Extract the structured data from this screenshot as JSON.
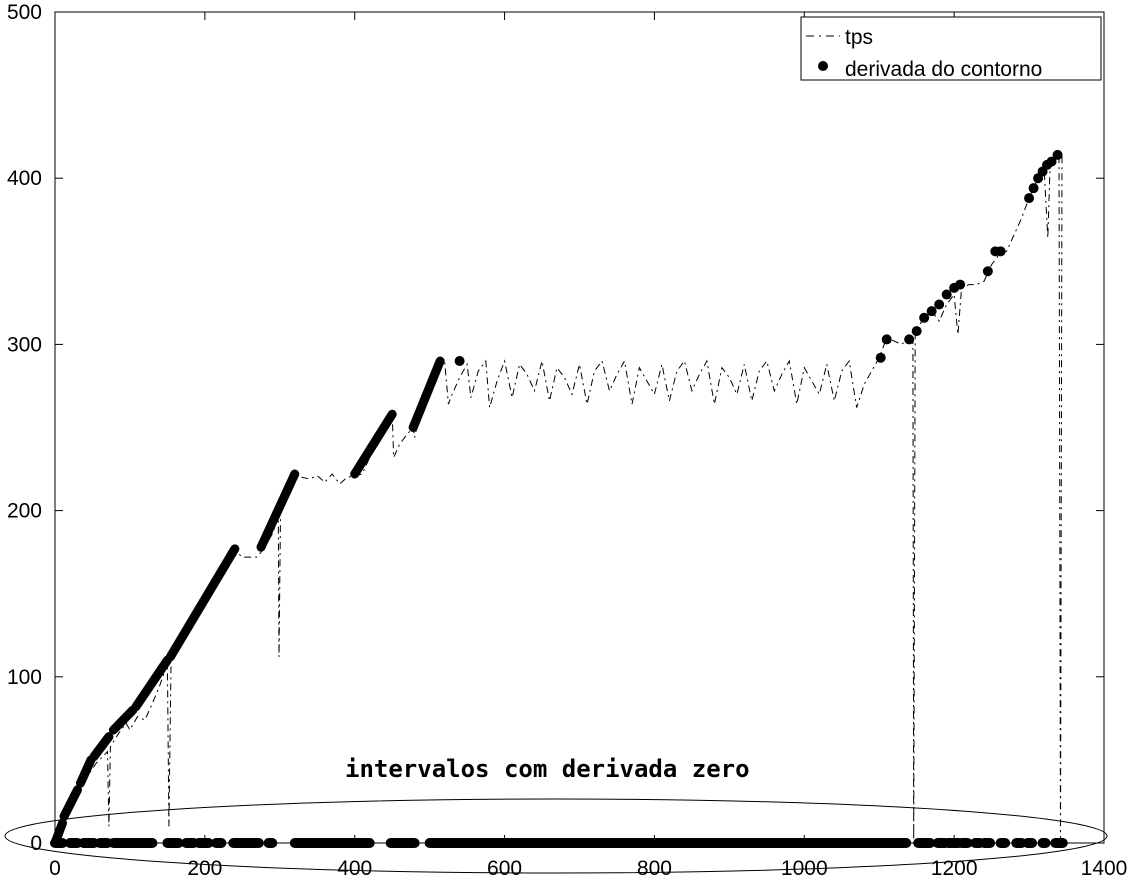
{
  "chart_data": {
    "type": "line",
    "title": "",
    "xlabel": "",
    "ylabel": "",
    "xlim": [
      0,
      1400
    ],
    "ylim": [
      0,
      500
    ],
    "x_ticks": [
      0,
      200,
      400,
      600,
      800,
      1000,
      1200,
      1400
    ],
    "y_ticks": [
      0,
      100,
      200,
      300,
      400,
      500
    ],
    "grid": false,
    "legend_position": "top-right",
    "annotation": "intervalos com derivada zero",
    "series": [
      {
        "name": "tps",
        "style": "dashed",
        "color": "#000000",
        "points": [
          [
            0,
            0
          ],
          [
            10,
            12
          ],
          [
            20,
            22
          ],
          [
            30,
            30
          ],
          [
            40,
            38
          ],
          [
            55,
            48
          ],
          [
            70,
            55
          ],
          [
            72,
            10
          ],
          [
            74,
            58
          ],
          [
            85,
            66
          ],
          [
            95,
            72
          ],
          [
            100,
            68
          ],
          [
            110,
            76
          ],
          [
            120,
            74
          ],
          [
            130,
            84
          ],
          [
            140,
            95
          ],
          [
            150,
            108
          ],
          [
            152,
            10
          ],
          [
            155,
            112
          ],
          [
            160,
            118
          ],
          [
            170,
            126
          ],
          [
            180,
            132
          ],
          [
            190,
            138
          ],
          [
            200,
            144
          ],
          [
            210,
            150
          ],
          [
            220,
            158
          ],
          [
            230,
            166
          ],
          [
            240,
            176
          ],
          [
            250,
            172
          ],
          [
            260,
            172
          ],
          [
            270,
            172
          ],
          [
            280,
            178
          ],
          [
            290,
            186
          ],
          [
            298,
            196
          ],
          [
            299,
            112
          ],
          [
            301,
            198
          ],
          [
            310,
            210
          ],
          [
            320,
            222
          ],
          [
            330,
            220
          ],
          [
            340,
            219
          ],
          [
            350,
            221
          ],
          [
            360,
            217
          ],
          [
            370,
            222
          ],
          [
            380,
            216
          ],
          [
            390,
            220
          ],
          [
            400,
            221
          ],
          [
            410,
            222
          ],
          [
            420,
            232
          ],
          [
            430,
            244
          ],
          [
            440,
            250
          ],
          [
            450,
            258
          ],
          [
            452,
            232
          ],
          [
            460,
            240
          ],
          [
            470,
            246
          ],
          [
            478,
            250
          ],
          [
            480,
            244
          ],
          [
            490,
            265
          ],
          [
            500,
            276
          ],
          [
            510,
            284
          ],
          [
            520,
            290
          ],
          [
            525,
            264
          ],
          [
            530,
            270
          ],
          [
            540,
            280
          ],
          [
            550,
            288
          ],
          [
            555,
            268
          ],
          [
            565,
            284
          ],
          [
            575,
            290
          ],
          [
            580,
            262
          ],
          [
            590,
            278
          ],
          [
            600,
            290
          ],
          [
            610,
            268
          ],
          [
            620,
            288
          ],
          [
            630,
            282
          ],
          [
            640,
            272
          ],
          [
            650,
            290
          ],
          [
            660,
            266
          ],
          [
            670,
            286
          ],
          [
            680,
            280
          ],
          [
            690,
            270
          ],
          [
            700,
            288
          ],
          [
            710,
            264
          ],
          [
            720,
            284
          ],
          [
            730,
            290
          ],
          [
            740,
            272
          ],
          [
            750,
            282
          ],
          [
            760,
            290
          ],
          [
            770,
            264
          ],
          [
            780,
            286
          ],
          [
            790,
            278
          ],
          [
            800,
            270
          ],
          [
            810,
            288
          ],
          [
            820,
            266
          ],
          [
            830,
            284
          ],
          [
            840,
            290
          ],
          [
            850,
            272
          ],
          [
            860,
            282
          ],
          [
            870,
            290
          ],
          [
            880,
            264
          ],
          [
            890,
            286
          ],
          [
            900,
            280
          ],
          [
            910,
            270
          ],
          [
            920,
            288
          ],
          [
            930,
            266
          ],
          [
            940,
            284
          ],
          [
            950,
            290
          ],
          [
            960,
            272
          ],
          [
            970,
            282
          ],
          [
            980,
            290
          ],
          [
            990,
            264
          ],
          [
            1000,
            286
          ],
          [
            1010,
            278
          ],
          [
            1020,
            270
          ],
          [
            1030,
            288
          ],
          [
            1040,
            266
          ],
          [
            1050,
            284
          ],
          [
            1060,
            290
          ],
          [
            1070,
            262
          ],
          [
            1080,
            276
          ],
          [
            1090,
            284
          ],
          [
            1100,
            292
          ],
          [
            1110,
            304
          ],
          [
            1120,
            302
          ],
          [
            1130,
            300
          ],
          [
            1140,
            304
          ],
          [
            1145,
            308
          ],
          [
            1146,
            2
          ],
          [
            1148,
            308
          ],
          [
            1160,
            316
          ],
          [
            1170,
            320
          ],
          [
            1180,
            314
          ],
          [
            1190,
            324
          ],
          [
            1200,
            330
          ],
          [
            1205,
            306
          ],
          [
            1210,
            334
          ],
          [
            1220,
            336
          ],
          [
            1230,
            336
          ],
          [
            1240,
            338
          ],
          [
            1250,
            348
          ],
          [
            1260,
            354
          ],
          [
            1270,
            356
          ],
          [
            1280,
            366
          ],
          [
            1290,
            376
          ],
          [
            1300,
            388
          ],
          [
            1310,
            398
          ],
          [
            1320,
            406
          ],
          [
            1325,
            364
          ],
          [
            1328,
            408
          ],
          [
            1335,
            412
          ],
          [
            1340,
            414
          ],
          [
            1342,
            2
          ],
          [
            1344,
            414
          ]
        ]
      },
      {
        "name": "derivada do contorno",
        "style": "markers",
        "color": "#000000",
        "segments": [
          [
            0,
            0,
            10,
            12
          ],
          [
            12,
            16,
            30,
            32
          ],
          [
            34,
            36,
            48,
            50
          ],
          [
            52,
            52,
            72,
            64
          ],
          [
            78,
            68,
            104,
            80
          ],
          [
            108,
            82,
            150,
            110
          ],
          [
            154,
            112,
            240,
            177
          ],
          [
            275,
            178,
            320,
            222
          ],
          [
            400,
            222,
            450,
            258
          ],
          [
            478,
            250,
            514,
            290
          ]
        ],
        "points": [
          [
            540,
            290
          ],
          [
            1102,
            292
          ],
          [
            1110,
            303
          ],
          [
            1140,
            303
          ],
          [
            1150,
            308
          ],
          [
            1160,
            316
          ],
          [
            1170,
            320
          ],
          [
            1180,
            324
          ],
          [
            1190,
            330
          ],
          [
            1200,
            334
          ],
          [
            1208,
            336
          ],
          [
            1245,
            344
          ],
          [
            1255,
            356
          ],
          [
            1262,
            356
          ],
          [
            1300,
            388
          ],
          [
            1306,
            394
          ],
          [
            1312,
            400
          ],
          [
            1318,
            404
          ],
          [
            1324,
            408
          ],
          [
            1330,
            410
          ],
          [
            1338,
            414
          ]
        ],
        "zero_intervals": [
          [
            0,
            10
          ],
          [
            20,
            30
          ],
          [
            38,
            52
          ],
          [
            60,
            70
          ],
          [
            78,
            130
          ],
          [
            150,
            165
          ],
          [
            175,
            185
          ],
          [
            192,
            205
          ],
          [
            215,
            222
          ],
          [
            238,
            272
          ],
          [
            285,
            290
          ],
          [
            320,
            420
          ],
          [
            448,
            480
          ],
          [
            500,
            1136
          ],
          [
            1152,
            1168
          ],
          [
            1178,
            1188
          ],
          [
            1192,
            1196
          ],
          [
            1198,
            1206
          ],
          [
            1210,
            1218
          ],
          [
            1228,
            1234
          ],
          [
            1240,
            1248
          ],
          [
            1262,
            1268
          ],
          [
            1283,
            1290
          ],
          [
            1298,
            1304
          ],
          [
            1318,
            1322
          ],
          [
            1335,
            1345
          ]
        ]
      }
    ]
  }
}
